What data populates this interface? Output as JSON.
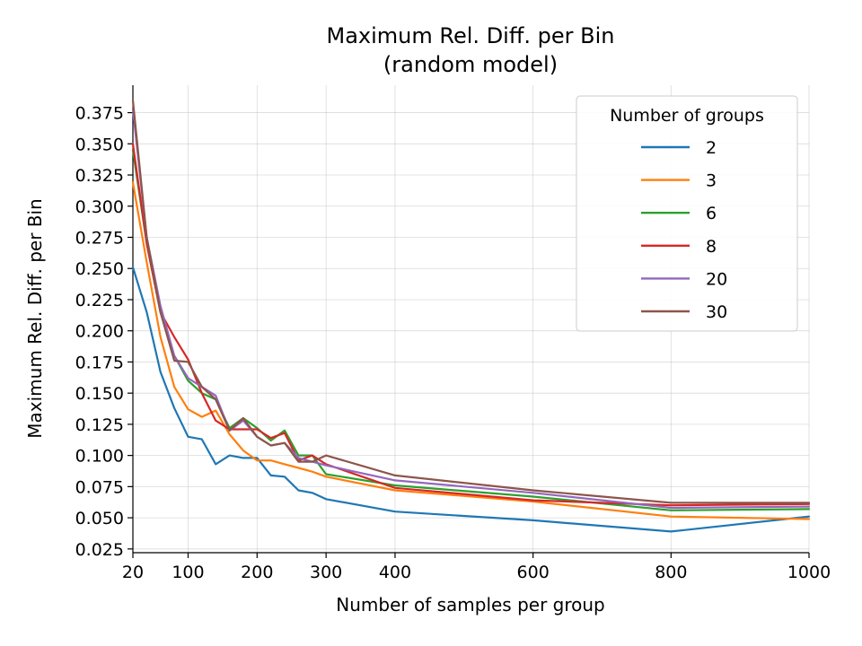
{
  "chart_data": {
    "type": "line",
    "title_lines": [
      "Maximum Rel. Diff. per Bin",
      "(random model)"
    ],
    "xlabel": "Number of samples per group",
    "ylabel": "Maximum Rel. Diff. per Bin",
    "xlim": [
      20,
      1000
    ],
    "ylim": [
      0.022,
      0.397
    ],
    "xticks": [
      20,
      100,
      200,
      300,
      400,
      600,
      800,
      1000
    ],
    "xtick_labels": [
      "20",
      "100",
      "200",
      "300",
      "400",
      "600",
      "800",
      "1000"
    ],
    "yticks": [
      0.025,
      0.05,
      0.075,
      0.1,
      0.125,
      0.15,
      0.175,
      0.2,
      0.225,
      0.25,
      0.275,
      0.3,
      0.325,
      0.35,
      0.375
    ],
    "ytick_labels": [
      "0.025",
      "0.050",
      "0.075",
      "0.100",
      "0.125",
      "0.150",
      "0.175",
      "0.200",
      "0.225",
      "0.250",
      "0.275",
      "0.300",
      "0.325",
      "0.350",
      "0.375"
    ],
    "grid": true,
    "legend": {
      "title": "Number of groups",
      "placement": "top-right"
    },
    "x": [
      20,
      40,
      60,
      80,
      100,
      120,
      140,
      160,
      180,
      200,
      220,
      240,
      260,
      280,
      300,
      400,
      600,
      800,
      1000
    ],
    "series": [
      {
        "name": "2",
        "color": "#1f77b4",
        "values": [
          0.251,
          0.215,
          0.167,
          0.138,
          0.115,
          0.113,
          0.093,
          0.1,
          0.098,
          0.098,
          0.084,
          0.083,
          0.072,
          0.07,
          0.065,
          0.055,
          0.048,
          0.039,
          0.051
        ]
      },
      {
        "name": "3",
        "color": "#ff7f0e",
        "values": [
          0.319,
          0.255,
          0.195,
          0.155,
          0.137,
          0.131,
          0.136,
          0.117,
          0.104,
          0.096,
          0.096,
          0.093,
          0.09,
          0.087,
          0.083,
          0.072,
          0.063,
          0.051,
          0.049
        ]
      },
      {
        "name": "6",
        "color": "#2ca02c",
        "values": [
          0.345,
          0.27,
          0.215,
          0.18,
          0.16,
          0.15,
          0.145,
          0.122,
          0.13,
          0.122,
          0.112,
          0.12,
          0.1,
          0.1,
          0.085,
          0.076,
          0.067,
          0.056,
          0.057
        ]
      },
      {
        "name": "8",
        "color": "#d62728",
        "values": [
          0.35,
          0.27,
          0.215,
          0.195,
          0.177,
          0.15,
          0.128,
          0.121,
          0.121,
          0.121,
          0.114,
          0.118,
          0.096,
          0.1,
          0.093,
          0.074,
          0.064,
          0.06,
          0.061
        ]
      },
      {
        "name": "20",
        "color": "#9467bd",
        "values": [
          0.378,
          0.275,
          0.22,
          0.18,
          0.162,
          0.155,
          0.148,
          0.12,
          0.128,
          0.115,
          0.108,
          0.11,
          0.098,
          0.095,
          0.092,
          0.08,
          0.07,
          0.058,
          0.059
        ]
      },
      {
        "name": "30",
        "color": "#8c564b",
        "values": [
          0.385,
          0.275,
          0.215,
          0.176,
          0.175,
          0.155,
          0.145,
          0.12,
          0.13,
          0.115,
          0.108,
          0.11,
          0.095,
          0.095,
          0.1,
          0.084,
          0.072,
          0.062,
          0.062
        ]
      }
    ]
  }
}
